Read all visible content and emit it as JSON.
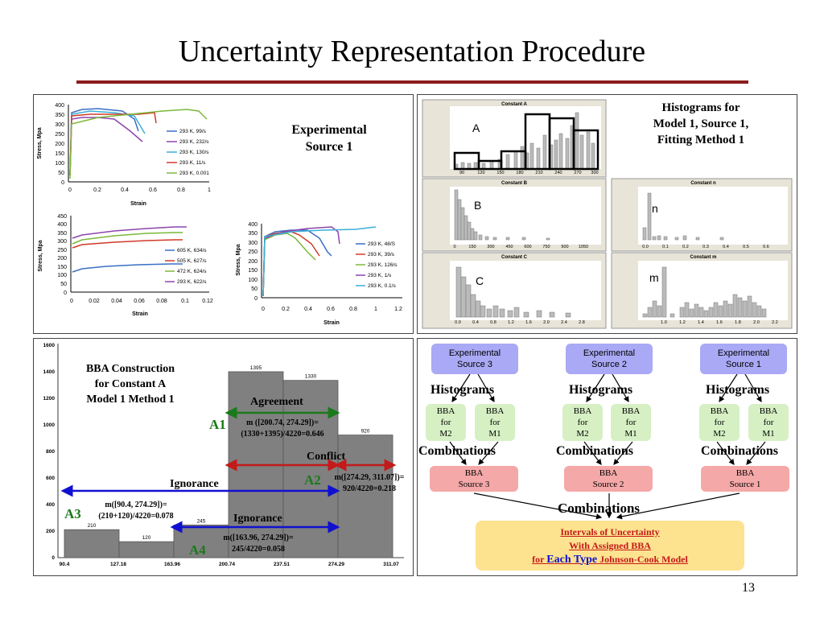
{
  "slide": {
    "title": "Uncertainty Representation Procedure",
    "number": "13"
  },
  "panel_top_left": {
    "label_line1": "Experimental",
    "label_line2": "Source 1",
    "chart1": {
      "ylabel": "Stress, Mpa",
      "xlabel": "Strain",
      "yticks": [
        "400",
        "350",
        "300",
        "250",
        "200",
        "150",
        "100",
        "50",
        "0"
      ],
      "xticks": [
        "0",
        "0.2",
        "0.4",
        "0.6",
        "0.8",
        "1"
      ],
      "legend": [
        "293 K, 99/s",
        "293 K, 232/s",
        "293 K, 130/s",
        "293 K, 11/s",
        "293 K, 0.001"
      ]
    },
    "chart2": {
      "ylabel": "Stress, Mpa",
      "xlabel": "Strain",
      "yticks": [
        "450",
        "400",
        "350",
        "300",
        "250",
        "200",
        "150",
        "100",
        "50",
        "0"
      ],
      "xticks": [
        "0",
        "0.02",
        "0.04",
        "0.06",
        "0.08",
        "0.1",
        "0.12"
      ],
      "legend": [
        "605 K, 634/s",
        "505 K, 627/s",
        "472 K, 624/s",
        "293 K, 622/s"
      ]
    },
    "chart3": {
      "ylabel": "Stress, Mpa",
      "xlabel": "Strain",
      "yticks": [
        "400",
        "350",
        "300",
        "250",
        "200",
        "150",
        "100",
        "50",
        "0"
      ],
      "xticks": [
        "0",
        "0.2",
        "0.4",
        "0.6",
        "0.8",
        "1",
        "1.2"
      ],
      "legend": [
        "293 K, 48/S",
        "293 K, 39/s",
        "293 K, 126/s",
        "293 K, 1/s",
        "293 K, 0.1/s"
      ]
    }
  },
  "panel_top_right": {
    "label_line1": "Histograms for",
    "label_line2": "Model 1, Source 1,",
    "label_line3": "Fitting Method 1",
    "hist_A": {
      "title": "Constant A",
      "letter": "A",
      "xticks": [
        "90",
        "120",
        "150",
        "180",
        "210",
        "240",
        "270",
        "300"
      ]
    },
    "hist_B": {
      "title": "Constant B",
      "letter": "B",
      "xticks": [
        "0",
        "150",
        "300",
        "450",
        "600",
        "750",
        "900",
        "1050"
      ]
    },
    "hist_n": {
      "title": "Constant n",
      "letter": "n",
      "xticks": [
        "0.0",
        "0.1",
        "0.2",
        "0.3",
        "0.4",
        "0.5",
        "0.6"
      ]
    },
    "hist_C": {
      "title": "Constant C",
      "letter": "C",
      "xticks": [
        "0.0",
        "0.4",
        "0.8",
        "1.2",
        "1.6",
        "2.0",
        "2.4",
        "2.8"
      ]
    },
    "hist_m": {
      "title": "Constant m",
      "letter": "m",
      "xticks": [
        "1.0",
        "1.2",
        "1.4",
        "1.6",
        "1.8",
        "2.0",
        "2.2"
      ]
    }
  },
  "panel_bottom_left": {
    "heading_line1": "BBA Construction",
    "heading_line2": "for Constant A",
    "heading_line3": "Model 1 Method 1",
    "yticks": [
      "1600",
      "1400",
      "1200",
      "1000",
      "800",
      "600",
      "400",
      "200",
      "0"
    ],
    "xticks": [
      "90.4",
      "127.18",
      "163.96",
      "200.74",
      "237.51",
      "274.29",
      "311.07"
    ],
    "bars": [
      {
        "label": "210",
        "value": 210
      },
      {
        "label": "120",
        "value": 120
      },
      {
        "label": "245",
        "value": 245
      },
      {
        "label": "1395",
        "value": 1395
      },
      {
        "label": "1330",
        "value": 1330
      },
      {
        "label": "920",
        "value": 920
      }
    ],
    "agreement": "Agreement",
    "a1": "A1",
    "a1_formula1": "m ([200.74, 274.29])=",
    "a1_formula2": "(1330+1395)/4220=0.646",
    "conflict": "Conflict",
    "a2": "A2",
    "a2_formula1": "m([274.29, 311.07])=",
    "a2_formula2": "920/4220=0.218",
    "ignorance1": "Ignorance",
    "a3": "A3",
    "a3_formula1": "m([90.4, 274.29])=",
    "a3_formula2": "(210+120)/4220=0.078",
    "ignorance2": "Ignorance",
    "a4": "A4",
    "a4_formula1": "m([163.96, 274.29])=",
    "a4_formula2": "245/4220=0.058"
  },
  "panel_bottom_right": {
    "sources": [
      {
        "exp1": "Experimental",
        "exp2": "Source 3",
        "hist": "Histograms",
        "m2": [
          "BBA",
          "for",
          "M2"
        ],
        "m1": [
          "BBA",
          "for",
          "M1"
        ],
        "comb": "Combinations",
        "bba1": "BBA",
        "bba2": "Source 3"
      },
      {
        "exp1": "Experimental",
        "exp2": "Source 2",
        "hist": "Histograms",
        "m2": [
          "BBA",
          "for",
          "M2"
        ],
        "m1": [
          "BBA",
          "for",
          "M1"
        ],
        "comb": "Combinations",
        "bba1": "BBA",
        "bba2": "Source 2"
      },
      {
        "exp1": "Experimental",
        "exp2": "Source 1",
        "hist": "Histograms",
        "m2": [
          "BBA",
          "for",
          "M2"
        ],
        "m1": [
          "BBA",
          "for",
          "M1"
        ],
        "comb": "Combinations",
        "bba1": "BBA",
        "bba2": "Source 1"
      }
    ],
    "final_comb": "Combinations",
    "result_line1": "Intervals of Uncertainty",
    "result_line2": "With Assigned BBA",
    "result_line3a": "for ",
    "result_line3b": "Each Type",
    "result_line3c": " Johnson-Cook Model"
  },
  "colors": {
    "rule": "#8b1c1c",
    "agreement_arrow": "#1a7a1a",
    "conflict_arrow": "#c41a1a",
    "ignorance_arrow": "#1010d0",
    "exp_box": "#a9a9f5",
    "bba_box": "#d6f0c4",
    "bba_source_box": "#f5a8a8",
    "result_box": "#fde38f"
  }
}
